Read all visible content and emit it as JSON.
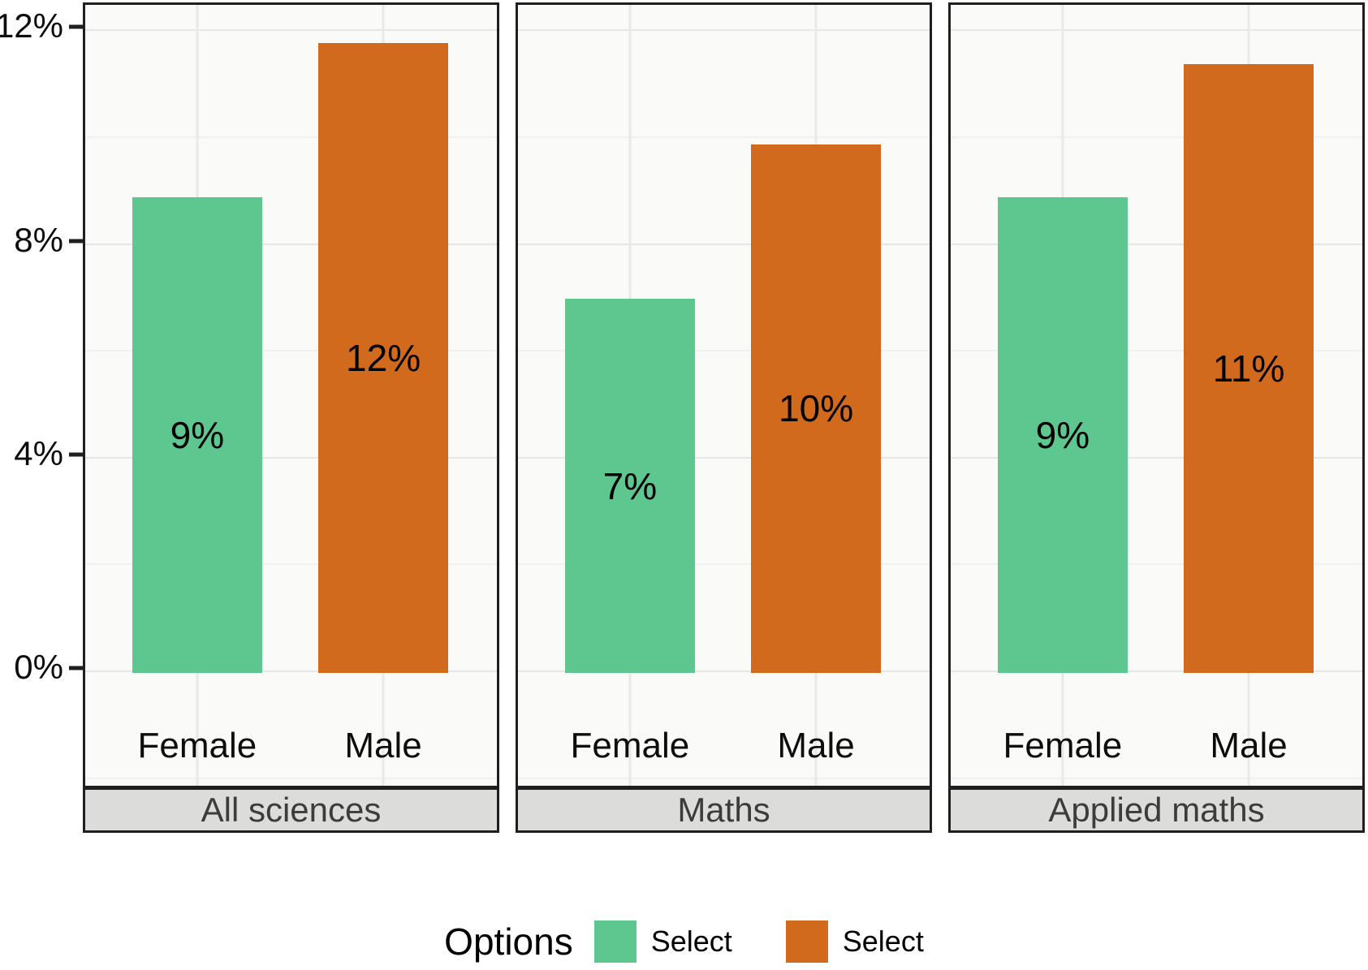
{
  "chart_data": {
    "type": "bar",
    "title": "",
    "y_axis": {
      "unit": "percent",
      "ylim": [
        -2.2,
        12.45
      ],
      "ticks": [
        {
          "value": 12,
          "label": "12%"
        },
        {
          "value": 8,
          "label": "8%"
        },
        {
          "value": 4,
          "label": "4%"
        },
        {
          "value": 0,
          "label": "0%"
        }
      ],
      "grid": {
        "major": true,
        "minor": true,
        "minor_step": 2
      }
    },
    "x_axis": {
      "categories": [
        "Female",
        "Male"
      ]
    },
    "facets": [
      {
        "strip": "All sciences",
        "categories": [
          "Female",
          "Male"
        ],
        "values": [
          8.9,
          11.8
        ],
        "bar_labels": [
          "9%",
          "12%"
        ]
      },
      {
        "strip": "Maths",
        "categories": [
          "Female",
          "Male"
        ],
        "values": [
          7.0,
          9.9
        ],
        "bar_labels": [
          "7%",
          "10%"
        ]
      },
      {
        "strip": "Applied maths",
        "categories": [
          "Female",
          "Male"
        ],
        "values": [
          8.9,
          11.4
        ],
        "bar_labels": [
          "9%",
          "11%"
        ]
      }
    ],
    "series_colors": [
      "#5DC78F",
      "#D26A1E"
    ],
    "legend_position": "bottom"
  },
  "legend": {
    "title": "Options",
    "items": [
      {
        "label": "Select",
        "color": "#5DC78F"
      },
      {
        "label": "Select",
        "color": "#D26A1E"
      }
    ]
  },
  "colors": {
    "panel_background": "#FAFAF8",
    "panel_border": "#1f1f1f",
    "grid_major": "#E6E6E3",
    "grid_minor": "#F0F0ED",
    "strip_background": "#DCDCDA",
    "strip_text": "#3c3c3c",
    "bar_green": "#5DC78F",
    "bar_orange": "#D26A1E"
  }
}
